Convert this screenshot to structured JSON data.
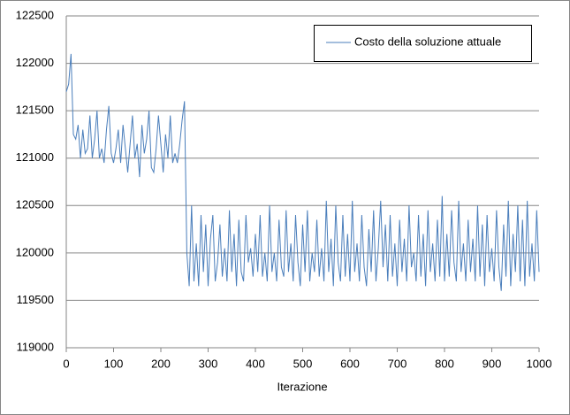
{
  "chart_data": {
    "type": "line",
    "x_label": "Iterazione",
    "x": [
      0,
      5,
      10,
      15,
      20,
      25,
      30,
      35,
      40,
      45,
      50,
      55,
      60,
      65,
      70,
      75,
      80,
      85,
      90,
      95,
      100,
      105,
      110,
      115,
      120,
      125,
      130,
      135,
      140,
      145,
      150,
      155,
      160,
      165,
      170,
      175,
      180,
      185,
      190,
      195,
      200,
      205,
      210,
      215,
      220,
      225,
      230,
      235,
      240,
      245,
      250,
      255,
      260,
      265,
      270,
      275,
      280,
      285,
      290,
      295,
      300,
      305,
      310,
      315,
      320,
      325,
      330,
      335,
      340,
      345,
      350,
      355,
      360,
      365,
      370,
      375,
      380,
      385,
      390,
      395,
      400,
      405,
      410,
      415,
      420,
      425,
      430,
      435,
      440,
      445,
      450,
      455,
      460,
      465,
      470,
      475,
      480,
      485,
      490,
      495,
      500,
      505,
      510,
      515,
      520,
      525,
      530,
      535,
      540,
      545,
      550,
      555,
      560,
      565,
      570,
      575,
      580,
      585,
      590,
      595,
      600,
      605,
      610,
      615,
      620,
      625,
      630,
      635,
      640,
      645,
      650,
      655,
      660,
      665,
      670,
      675,
      680,
      685,
      690,
      695,
      700,
      705,
      710,
      715,
      720,
      725,
      730,
      735,
      740,
      745,
      750,
      755,
      760,
      765,
      770,
      775,
      780,
      785,
      790,
      795,
      800,
      805,
      810,
      815,
      820,
      825,
      830,
      835,
      840,
      845,
      850,
      855,
      860,
      865,
      870,
      875,
      880,
      885,
      890,
      895,
      900,
      905,
      910,
      915,
      920,
      925,
      930,
      935,
      940,
      945,
      950,
      955,
      960,
      965,
      970,
      975,
      980,
      985,
      990,
      995,
      1000
    ],
    "series": [
      {
        "name": "Costo della soluzione  attuale",
        "color": "#4a7ebb",
        "values": [
          121700,
          121780,
          122100,
          121250,
          121200,
          121350,
          121000,
          121300,
          121050,
          121100,
          121450,
          121000,
          121200,
          121500,
          121000,
          121100,
          120950,
          121300,
          121550,
          121050,
          120950,
          121100,
          121300,
          120950,
          121350,
          121100,
          120850,
          121150,
          121450,
          121000,
          121150,
          120800,
          121350,
          121050,
          121200,
          121500,
          120900,
          120850,
          121100,
          121450,
          121150,
          120850,
          121250,
          121000,
          121450,
          120950,
          121050,
          120950,
          121150,
          121400,
          121600,
          120000,
          119650,
          120500,
          119700,
          120100,
          119650,
          120400,
          119800,
          120300,
          119650,
          120150,
          120400,
          119700,
          119900,
          120300,
          119750,
          120050,
          119700,
          120450,
          119800,
          120200,
          119650,
          120350,
          119800,
          119700,
          120400,
          119900,
          120050,
          119750,
          120200,
          119800,
          120400,
          119750,
          120000,
          119700,
          120500,
          119800,
          120000,
          119700,
          120350,
          119850,
          119750,
          120450,
          119800,
          120100,
          119700,
          120400,
          119900,
          119650,
          120300,
          119800,
          120450,
          119700,
          120000,
          119800,
          120350,
          119750,
          120050,
          119700,
          120550,
          119800,
          120150,
          119650,
          120500,
          119900,
          119700,
          120400,
          119750,
          120200,
          119700,
          120550,
          119800,
          120100,
          119700,
          120400,
          119850,
          119650,
          120250,
          119800,
          120450,
          119700,
          120050,
          120550,
          119850,
          120300,
          119700,
          120400,
          119750,
          120100,
          119650,
          120350,
          119800,
          120150,
          119700,
          120500,
          119850,
          120000,
          119700,
          120400,
          119750,
          120200,
          119650,
          120450,
          119800,
          120100,
          119700,
          120350,
          119750,
          120600,
          119700,
          120200,
          119750,
          120450,
          119900,
          119700,
          120550,
          119800,
          120100,
          119700,
          120350,
          119800,
          120150,
          119700,
          120500,
          119750,
          120300,
          119650,
          120400,
          119800,
          120050,
          119700,
          120450,
          119850,
          119600,
          120300,
          119750,
          120550,
          119650,
          120200,
          119800,
          120500,
          119700,
          120350,
          119650,
          120550,
          119750,
          120100,
          119700,
          120450,
          119800
        ]
      }
    ],
    "xlim": [
      0,
      1000
    ],
    "xticks": [
      0,
      100,
      200,
      300,
      400,
      500,
      600,
      700,
      800,
      900,
      1000
    ],
    "ylim": [
      119000,
      122500
    ],
    "yticks": [
      119000,
      119500,
      120000,
      120500,
      121000,
      121500,
      122000,
      122500
    ],
    "grid": true,
    "legend": "top-right"
  }
}
